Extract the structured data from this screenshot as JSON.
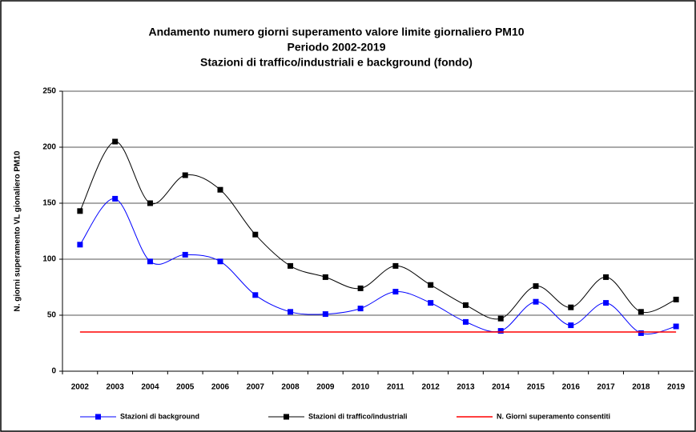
{
  "chart_data": {
    "type": "line",
    "title": [
      "Andamento numero giorni superamento valore limite giornaliero PM10",
      "Periodo 2002-2019",
      "Stazioni di traffico/industriali e background (fondo)"
    ],
    "y_label": "N. giorni superamento VL gionaliero PM10",
    "categories": [
      "2002",
      "2003",
      "2004",
      "2005",
      "2006",
      "2007",
      "2008",
      "2009",
      "2010",
      "2011",
      "2012",
      "2013",
      "2014",
      "2015",
      "2016",
      "2017",
      "2018",
      "2019"
    ],
    "series": [
      {
        "name": "Stazioni di background",
        "color": "#0000ff",
        "marker": true,
        "smooth": true,
        "values": [
          113,
          154,
          98,
          104,
          98,
          68,
          53,
          51,
          56,
          71,
          61,
          44,
          36,
          62,
          41,
          61,
          34,
          40
        ]
      },
      {
        "name": "Stazioni di traffico/industriali",
        "color": "#000000",
        "marker": true,
        "smooth": true,
        "values": [
          143,
          205,
          150,
          175,
          162,
          122,
          94,
          84,
          74,
          94,
          77,
          59,
          47,
          76,
          57,
          84,
          53,
          64
        ]
      },
      {
        "name": "N. Giorni superamento consentiti",
        "color": "#ff0000",
        "marker": false,
        "smooth": false,
        "values": [
          35,
          35,
          35,
          35,
          35,
          35,
          35,
          35,
          35,
          35,
          35,
          35,
          35,
          35,
          35,
          35,
          35,
          35
        ]
      }
    ],
    "ylim": [
      0,
      250
    ],
    "yticks": [
      0,
      50,
      100,
      150,
      200,
      250
    ],
    "grid": true,
    "legend": "bottom"
  }
}
